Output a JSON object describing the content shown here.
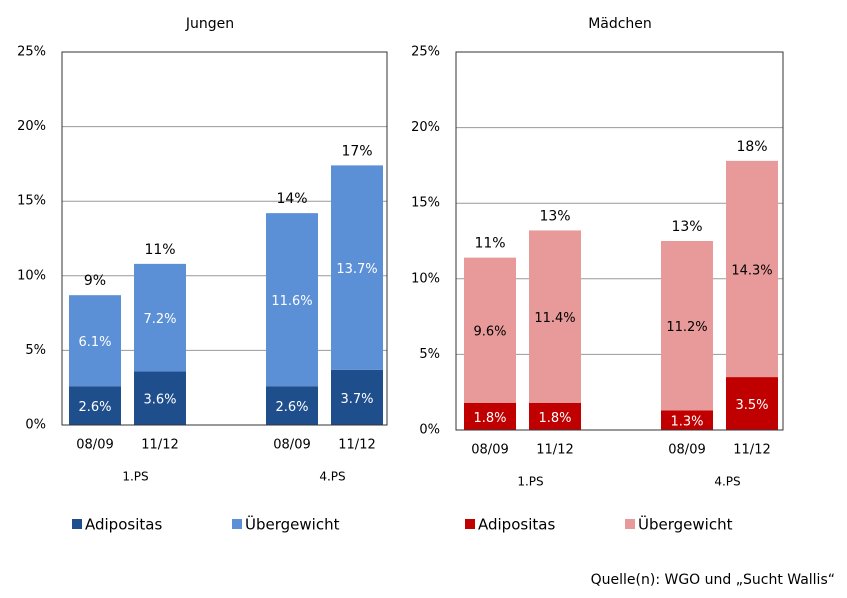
{
  "chart_data": [
    {
      "type": "bar",
      "stacked": true,
      "title": "Jungen",
      "categories": [
        "08/09",
        "11/12",
        "08/09",
        "11/12"
      ],
      "groups": [
        "1.PS",
        "4.PS"
      ],
      "series": [
        {
          "name": "Adipositas",
          "color": "#1f4e8c",
          "label_color": "#ffffff",
          "values": [
            2.6,
            3.6,
            2.6,
            3.7
          ],
          "value_labels": [
            "2.6%",
            "3.6%",
            "2.6%",
            "3.7%"
          ]
        },
        {
          "name": "Übergewicht",
          "color": "#5b8fd6",
          "label_color": "#ffffff",
          "values": [
            6.1,
            7.2,
            11.6,
            13.7
          ],
          "value_labels": [
            "6.1%",
            "7.2%",
            "11.6%",
            "13.7%"
          ]
        }
      ],
      "total_labels": [
        "9%",
        "11%",
        "14%",
        "17%"
      ],
      "ylim": [
        0,
        25
      ],
      "yticks": [
        {
          "value": 0,
          "label": "0%"
        },
        {
          "value": 5,
          "label": "5%"
        },
        {
          "value": 10,
          "label": "10%"
        },
        {
          "value": 15,
          "label": "15%"
        },
        {
          "value": 20,
          "label": "20%"
        },
        {
          "value": 25,
          "label": "25%"
        }
      ],
      "grid": true
    },
    {
      "type": "bar",
      "stacked": true,
      "title": "Mädchen",
      "categories": [
        "08/09",
        "11/12",
        "08/09",
        "11/12"
      ],
      "groups": [
        "1.PS",
        "4.PS"
      ],
      "series": [
        {
          "name": "Adipositas",
          "color": "#c00000",
          "label_color": "#ffffff",
          "values": [
            1.8,
            1.8,
            1.3,
            3.5
          ],
          "value_labels": [
            "1.8%",
            "1.8%",
            "1.3%",
            "3.5%"
          ]
        },
        {
          "name": "Übergewicht",
          "color": "#e89a9a",
          "label_color": "#000000",
          "values": [
            9.6,
            11.4,
            11.2,
            14.3
          ],
          "value_labels": [
            "9.6%",
            "11.4%",
            "11.2%",
            "14.3%"
          ]
        }
      ],
      "total_labels": [
        "11%",
        "13%",
        "13%",
        "18%"
      ],
      "ylim": [
        0,
        25
      ],
      "yticks": [
        {
          "value": 0,
          "label": "0%"
        },
        {
          "value": 5,
          "label": "5%"
        },
        {
          "value": 10,
          "label": "10%"
        },
        {
          "value": 15,
          "label": "15%"
        },
        {
          "value": 20,
          "label": "20%"
        },
        {
          "value": 25,
          "label": "25%"
        }
      ],
      "grid": true
    }
  ],
  "source": "Quelle(n): WGO und „Sucht Wallis“"
}
